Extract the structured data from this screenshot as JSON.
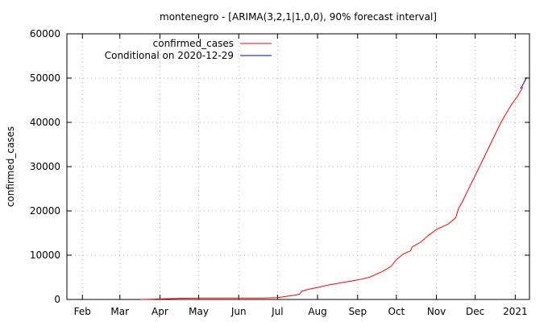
{
  "chart_data": {
    "type": "line",
    "title": "montenegro -  [ARIMA(3,2,1|1,0,0), 90% forecast interval]",
    "ylabel": "confirmed_cases",
    "xlabel": "",
    "ylim": [
      0,
      60000
    ],
    "yticks": [
      0,
      10000,
      20000,
      30000,
      40000,
      50000,
      60000
    ],
    "xlim": [
      "2020-01-20",
      "2021-01-12"
    ],
    "xticks": [
      {
        "date": "2020-02-01",
        "label": "Feb"
      },
      {
        "date": "2020-03-01",
        "label": "Mar"
      },
      {
        "date": "2020-04-01",
        "label": "Apr"
      },
      {
        "date": "2020-05-01",
        "label": "May"
      },
      {
        "date": "2020-06-01",
        "label": "Jun"
      },
      {
        "date": "2020-07-01",
        "label": "Jul"
      },
      {
        "date": "2020-08-01",
        "label": "Aug"
      },
      {
        "date": "2020-09-01",
        "label": "Sep"
      },
      {
        "date": "2020-10-01",
        "label": "Oct"
      },
      {
        "date": "2020-11-01",
        "label": "Nov"
      },
      {
        "date": "2020-12-01",
        "label": "Dec"
      },
      {
        "date": "2021-01-01",
        "label": "2021"
      }
    ],
    "grid": true,
    "legend_position": "top-left",
    "series": [
      {
        "name": "confirmed_cases",
        "color": "#ff0000",
        "points": [
          [
            "2020-03-17",
            0
          ],
          [
            "2020-03-25",
            50
          ],
          [
            "2020-04-01",
            100
          ],
          [
            "2020-04-15",
            250
          ],
          [
            "2020-05-01",
            320
          ],
          [
            "2020-05-15",
            324
          ],
          [
            "2020-06-01",
            324
          ],
          [
            "2020-06-20",
            330
          ],
          [
            "2020-07-01",
            400
          ],
          [
            "2020-07-08",
            700
          ],
          [
            "2020-07-15",
            1000
          ],
          [
            "2020-07-18",
            1200
          ],
          [
            "2020-07-20",
            1900
          ],
          [
            "2020-07-25",
            2300
          ],
          [
            "2020-08-01",
            2700
          ],
          [
            "2020-08-10",
            3300
          ],
          [
            "2020-08-20",
            3800
          ],
          [
            "2020-09-01",
            4400
          ],
          [
            "2020-09-10",
            5000
          ],
          [
            "2020-09-20",
            6300
          ],
          [
            "2020-09-27",
            7500
          ],
          [
            "2020-10-01",
            9000
          ],
          [
            "2020-10-06",
            10200
          ],
          [
            "2020-10-12",
            11000
          ],
          [
            "2020-10-13",
            11800
          ],
          [
            "2020-10-20",
            13000
          ],
          [
            "2020-10-26",
            14500
          ],
          [
            "2020-11-01",
            15800
          ],
          [
            "2020-11-10",
            17000
          ],
          [
            "2020-11-16",
            18500
          ],
          [
            "2020-11-18",
            20500
          ],
          [
            "2020-11-21",
            22000
          ],
          [
            "2020-11-26",
            25000
          ],
          [
            "2020-12-01",
            28000
          ],
          [
            "2020-12-06",
            31000
          ],
          [
            "2020-12-11",
            34000
          ],
          [
            "2020-12-16",
            37000
          ],
          [
            "2020-12-21",
            40000
          ],
          [
            "2020-12-26",
            42500
          ],
          [
            "2020-12-29",
            44000
          ],
          [
            "2021-01-03",
            46000
          ],
          [
            "2021-01-07",
            48000
          ]
        ]
      },
      {
        "name": "Conditional on 2020-12-29",
        "color": "#0000cc",
        "points": [
          [
            "2021-01-05",
            47600
          ],
          [
            "2021-01-07",
            48600
          ],
          [
            "2021-01-10",
            50200
          ]
        ]
      }
    ]
  }
}
